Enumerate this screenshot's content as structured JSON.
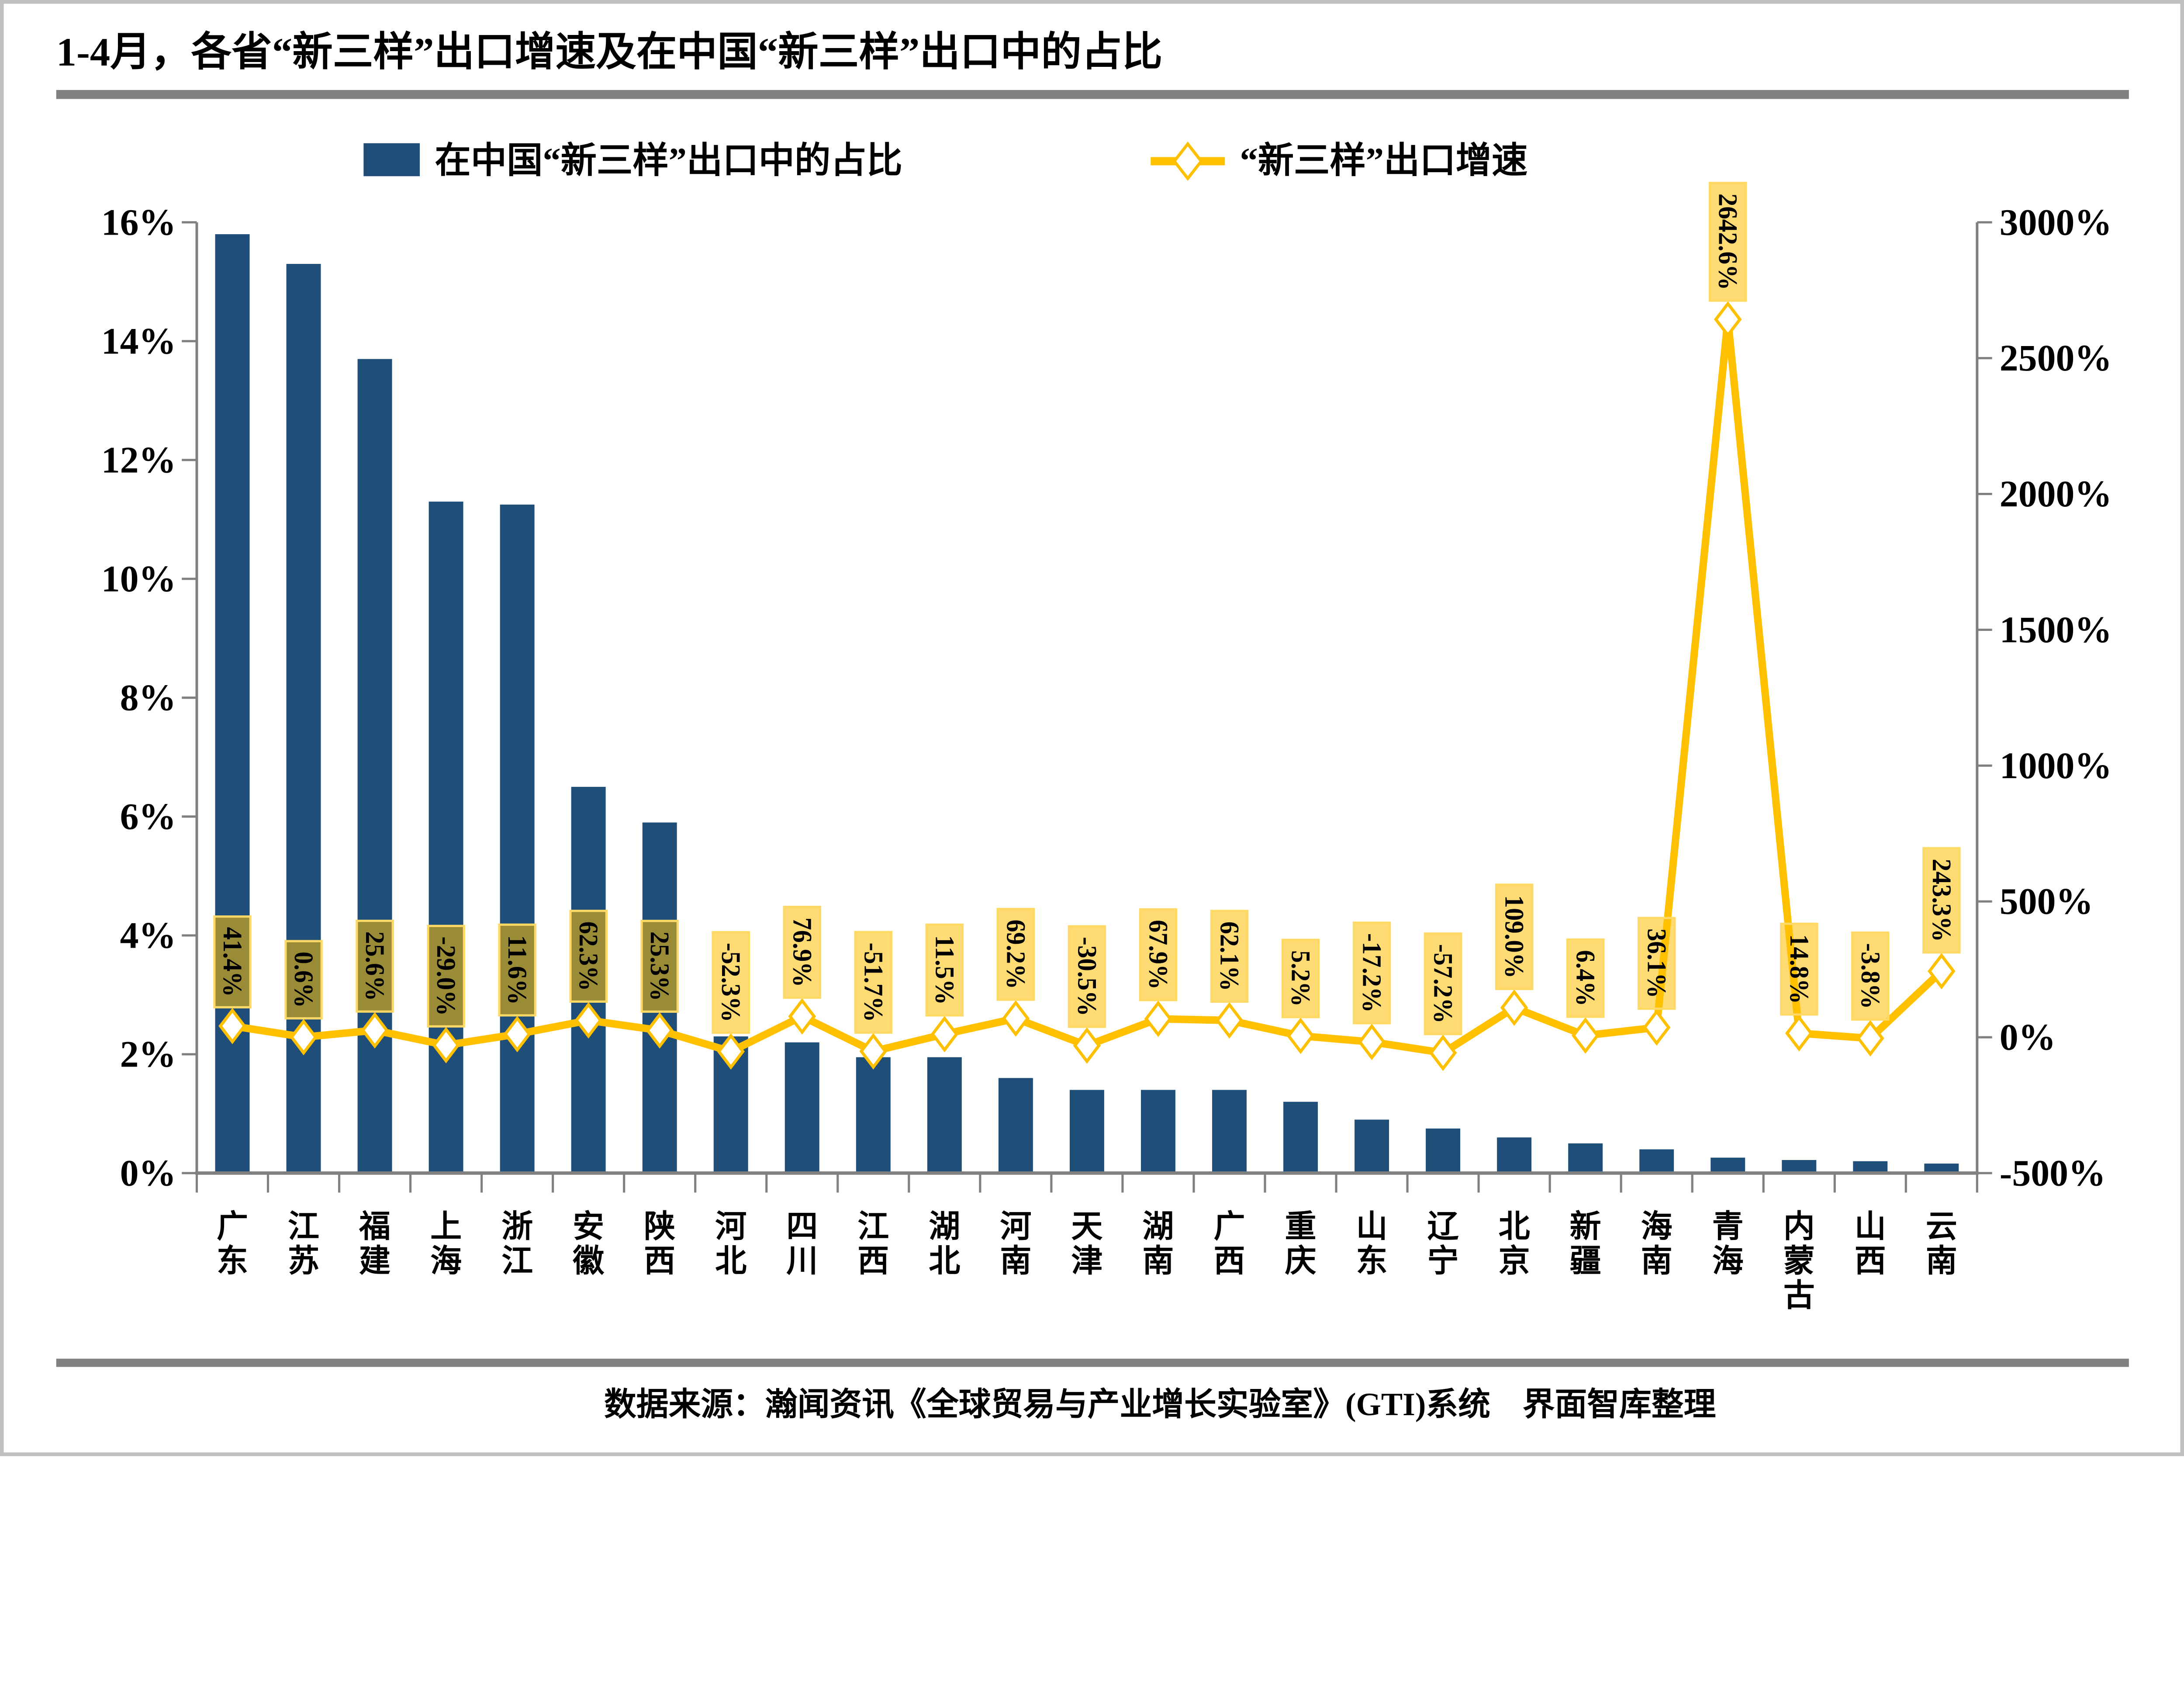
{
  "title": "1-4月，各省“新三样”出口增速及在中国“新三样”出口中的占比",
  "legend": {
    "bar_label": "在中国“新三样”出口中的占比",
    "line_label": "“新三样”出口增速"
  },
  "footer": {
    "source": "数据来源：瀚闻资讯《全球贸易与产业增长实验室》(GTI)系统　界面智库整理"
  },
  "colors": {
    "bar": "#1F4E79",
    "line": "#FFC000",
    "marker_fill": "#FFFFFF",
    "label_fill": "rgba(255,192,0,0.55)",
    "label_border": "#FFD966",
    "axis": "#808080",
    "divider": "#808080",
    "page_border": "#BFBFBF",
    "text": "#000000"
  },
  "chart_data": {
    "type": "bar",
    "title": "1-4月，各省“新三样”出口增速及在中国“新三样”出口中的占比",
    "categories": [
      "广东",
      "江苏",
      "福建",
      "上海",
      "浙江",
      "安徽",
      "陕西",
      "河北",
      "四川",
      "江西",
      "湖北",
      "河南",
      "天津",
      "湖南",
      "广西",
      "重庆",
      "山东",
      "辽宁",
      "北京",
      "新疆",
      "海南",
      "青海",
      "内蒙古",
      "山西",
      "云南"
    ],
    "series": [
      {
        "name": "在中国“新三样”出口中的占比",
        "type": "bar",
        "axis": "left",
        "values": [
          15.8,
          15.3,
          13.7,
          11.3,
          11.25,
          6.5,
          5.9,
          2.3,
          2.2,
          1.95,
          1.95,
          1.6,
          1.4,
          1.4,
          1.4,
          1.2,
          0.9,
          0.75,
          0.6,
          0.5,
          0.4,
          0.26,
          0.22,
          0.2,
          0.16
        ]
      },
      {
        "name": "“新三样”出口增速",
        "type": "line",
        "axis": "right",
        "values": [
          41.4,
          0.6,
          25.6,
          -29.0,
          11.6,
          62.3,
          25.3,
          -52.3,
          76.9,
          -51.7,
          11.5,
          69.2,
          -30.5,
          67.9,
          62.1,
          5.2,
          -17.2,
          -57.2,
          109.0,
          6.4,
          36.1,
          2642.6,
          14.8,
          -3.8,
          243.3
        ],
        "labels": [
          "41.4%",
          "0.6%",
          "25.6%",
          "-29.0%",
          "11.6%",
          "62.3%",
          "25.3%",
          "-52.3%",
          "76.9%",
          "-51.7%",
          "11.5%",
          "69.2%",
          "-30.5%",
          "67.9%",
          "62.1%",
          "5.2%",
          "-17.2%",
          "-57.2%",
          "109.0%",
          "6.4%",
          "36.1%",
          "2642.6%",
          "14.8%",
          "-3.8%",
          "243.3%"
        ]
      }
    ],
    "left_axis": {
      "min": 0,
      "max": 16,
      "tick_step": 2,
      "tick_labels": [
        "16%",
        "14%",
        "12%",
        "10%",
        "8%",
        "6%",
        "4%",
        "2%",
        "0%"
      ]
    },
    "right_axis": {
      "min": -500,
      "max": 3000,
      "tick_step": 500,
      "tick_labels": [
        "3000%",
        "2500%",
        "2000%",
        "1500%",
        "1000%",
        "500%",
        "0%",
        "-500%"
      ]
    },
    "legend_position": "top",
    "grid": false
  }
}
